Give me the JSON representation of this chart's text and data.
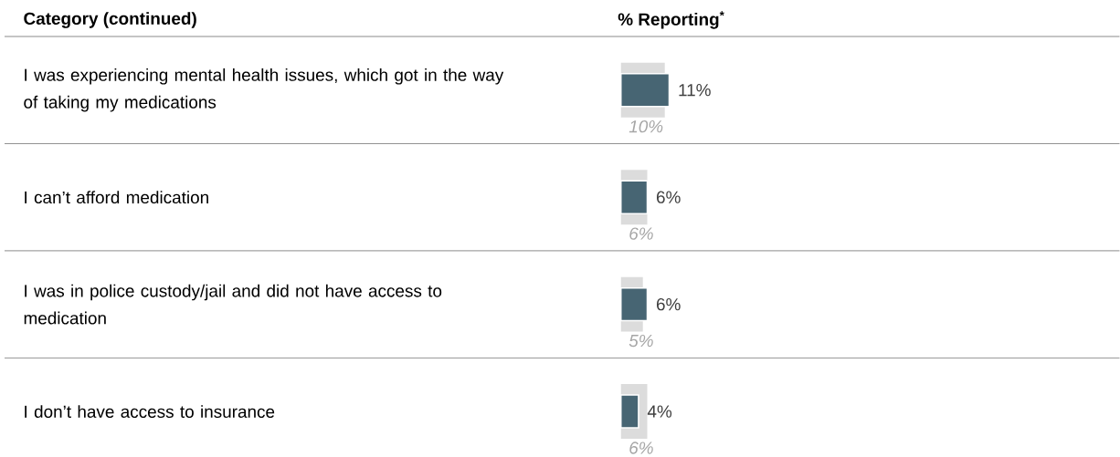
{
  "chart_data": {
    "type": "bar",
    "orientation": "horizontal",
    "ylabel": "Category (continued)",
    "xlabel": "% Reporting$^{*}$",
    "categories": [
      "I was experiencing mental health issues, which got in the way of taking my medications",
      "I can’t afford medication",
      "I was in police custody/jail and did not have access to medication",
      "I don’t have access to insurance"
    ],
    "series": [
      {
        "color": "#dcdcdc",
        "values": [
          10,
          6,
          5,
          6
        ],
        "value_labels": [
          "10%",
          "6%",
          "5%",
          "6%"
        ]
      },
      {
        "color": "#476573",
        "values": [
          11,
          6,
          6,
          4
        ],
        "value_labels": [
          "11%",
          "6%",
          "6%",
          "4%"
        ]
      }
    ]
  }
}
